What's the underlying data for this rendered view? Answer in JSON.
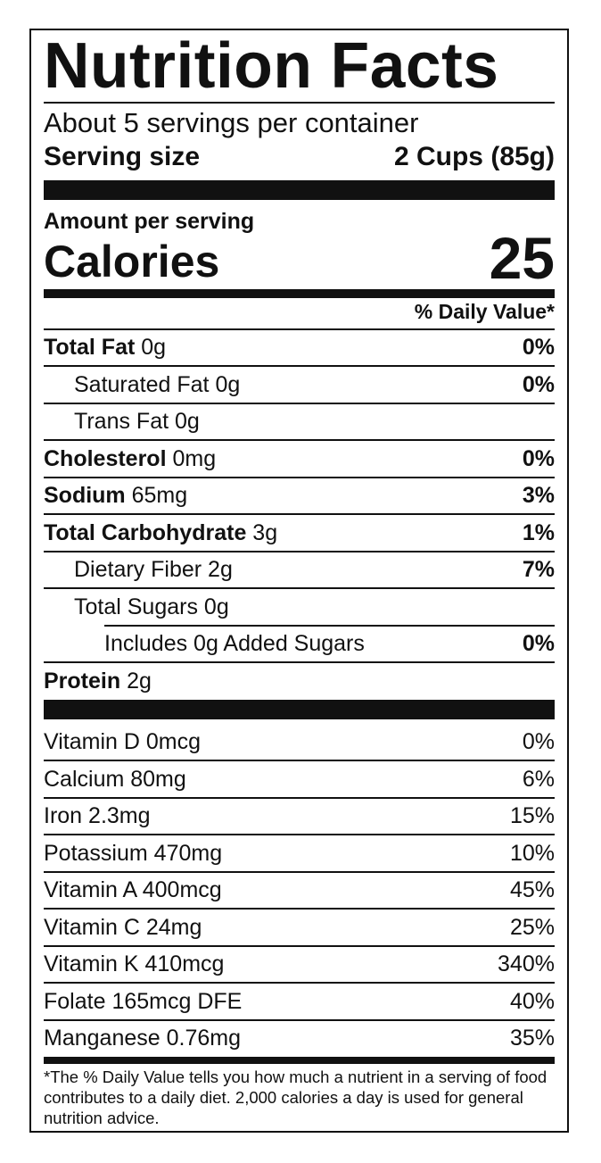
{
  "title": "Nutrition Facts",
  "servings_per_container": "About 5 servings per container",
  "serving_size": {
    "label": "Serving size",
    "value": "2 Cups (85g)"
  },
  "amount_per_serving": "Amount per serving",
  "calories": {
    "label": "Calories",
    "value": "25"
  },
  "daily_value_header": "% Daily Value*",
  "nutrients": [
    {
      "name": "Total Fat",
      "amount": "0g",
      "dv": "0%"
    },
    {
      "name": "Saturated Fat",
      "amount": "0g",
      "dv": "0%"
    },
    {
      "name": "Trans Fat",
      "amount": "0g",
      "dv": ""
    },
    {
      "name": "Cholesterol",
      "amount": "0mg",
      "dv": "0%"
    },
    {
      "name": "Sodium",
      "amount": "65mg",
      "dv": "3%"
    },
    {
      "name": "Total Carbohydrate",
      "amount": "3g",
      "dv": "1%"
    },
    {
      "name": "Dietary Fiber",
      "amount": "2g",
      "dv": "7%"
    },
    {
      "name": "Total Sugars",
      "amount": "0g",
      "dv": ""
    },
    {
      "name": "Includes 0g Added Sugars",
      "amount": "",
      "dv": "0%"
    },
    {
      "name": "Protein",
      "amount": "2g",
      "dv": ""
    }
  ],
  "vitamins": [
    {
      "name": "Vitamin D",
      "amount": "0mcg",
      "dv": "0%"
    },
    {
      "name": "Calcium",
      "amount": "80mg",
      "dv": "6%"
    },
    {
      "name": "Iron",
      "amount": "2.3mg",
      "dv": "15%"
    },
    {
      "name": "Potassium",
      "amount": "470mg",
      "dv": "10%"
    },
    {
      "name": "Vitamin A",
      "amount": "400mcg",
      "dv": "45%"
    },
    {
      "name": "Vitamin C",
      "amount": "24mg",
      "dv": "25%"
    },
    {
      "name": "Vitamin K",
      "amount": "410mcg",
      "dv": "340%"
    },
    {
      "name": "Folate",
      "amount": "165mcg DFE",
      "dv": "40%"
    },
    {
      "name": "Manganese",
      "amount": "0.76mg",
      "dv": "35%"
    }
  ],
  "footnote": "*The % Daily Value tells you how much a nutrient in a serving of food contributes to a daily diet. 2,000 calories a day is used for general nutrition advice."
}
